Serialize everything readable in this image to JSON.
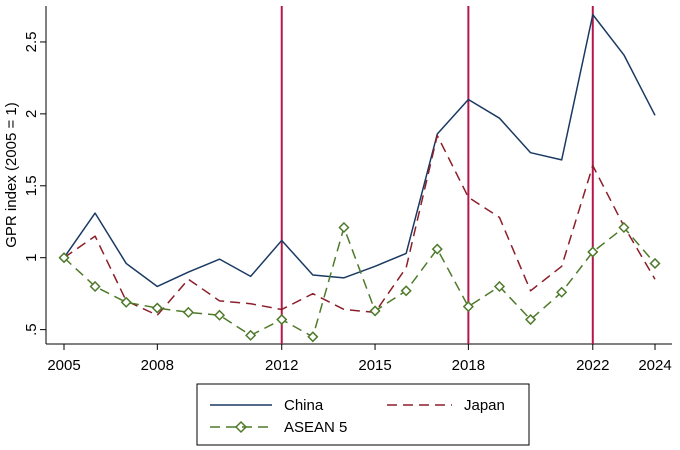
{
  "chart_data": {
    "type": "line",
    "title": "",
    "xlabel": "",
    "ylabel": "GPR index (2005 = 1)",
    "xlim": [
      2005,
      2024
    ],
    "ylim": [
      0.4,
      2.75
    ],
    "x_ticks": [
      2005,
      2008,
      2012,
      2015,
      2018,
      2022,
      2024
    ],
    "y_ticks": [
      0.5,
      1,
      1.5,
      2,
      2.5
    ],
    "y_tick_labels": [
      ".5",
      "1",
      "1.5",
      "2",
      "2.5"
    ],
    "vlines": [
      2012,
      2018,
      2022
    ],
    "vline_color": "#b5174a",
    "x": [
      2005,
      2006,
      2007,
      2008,
      2009,
      2010,
      2011,
      2012,
      2013,
      2014,
      2015,
      2016,
      2017,
      2018,
      2019,
      2020,
      2021,
      2022,
      2023,
      2024
    ],
    "series": [
      {
        "name": "China",
        "color": "#1a3a63",
        "style": "solid",
        "values": [
          1.0,
          1.31,
          0.96,
          0.8,
          0.9,
          0.99,
          0.87,
          1.12,
          0.88,
          0.86,
          0.94,
          1.03,
          1.86,
          2.1,
          1.97,
          1.73,
          1.68,
          2.69,
          2.41,
          1.99
        ]
      },
      {
        "name": "Japan",
        "color": "#8b1f2a",
        "style": "dashed",
        "values": [
          1.0,
          1.15,
          0.7,
          0.6,
          0.85,
          0.7,
          0.68,
          0.64,
          0.75,
          0.64,
          0.62,
          0.93,
          1.85,
          1.42,
          1.28,
          0.77,
          0.94,
          1.64,
          1.22,
          0.85
        ]
      },
      {
        "name": "ASEAN 5",
        "color": "#4e7a2b",
        "style": "dashed-diamond",
        "values": [
          1.0,
          0.8,
          0.69,
          0.65,
          0.62,
          0.6,
          0.46,
          0.57,
          0.45,
          1.21,
          0.63,
          0.77,
          1.06,
          0.66,
          0.8,
          0.57,
          0.76,
          1.04,
          1.21,
          0.96
        ]
      }
    ],
    "legend": {
      "position": "bottom-center",
      "entries": [
        "China",
        "Japan",
        "ASEAN 5"
      ]
    }
  }
}
